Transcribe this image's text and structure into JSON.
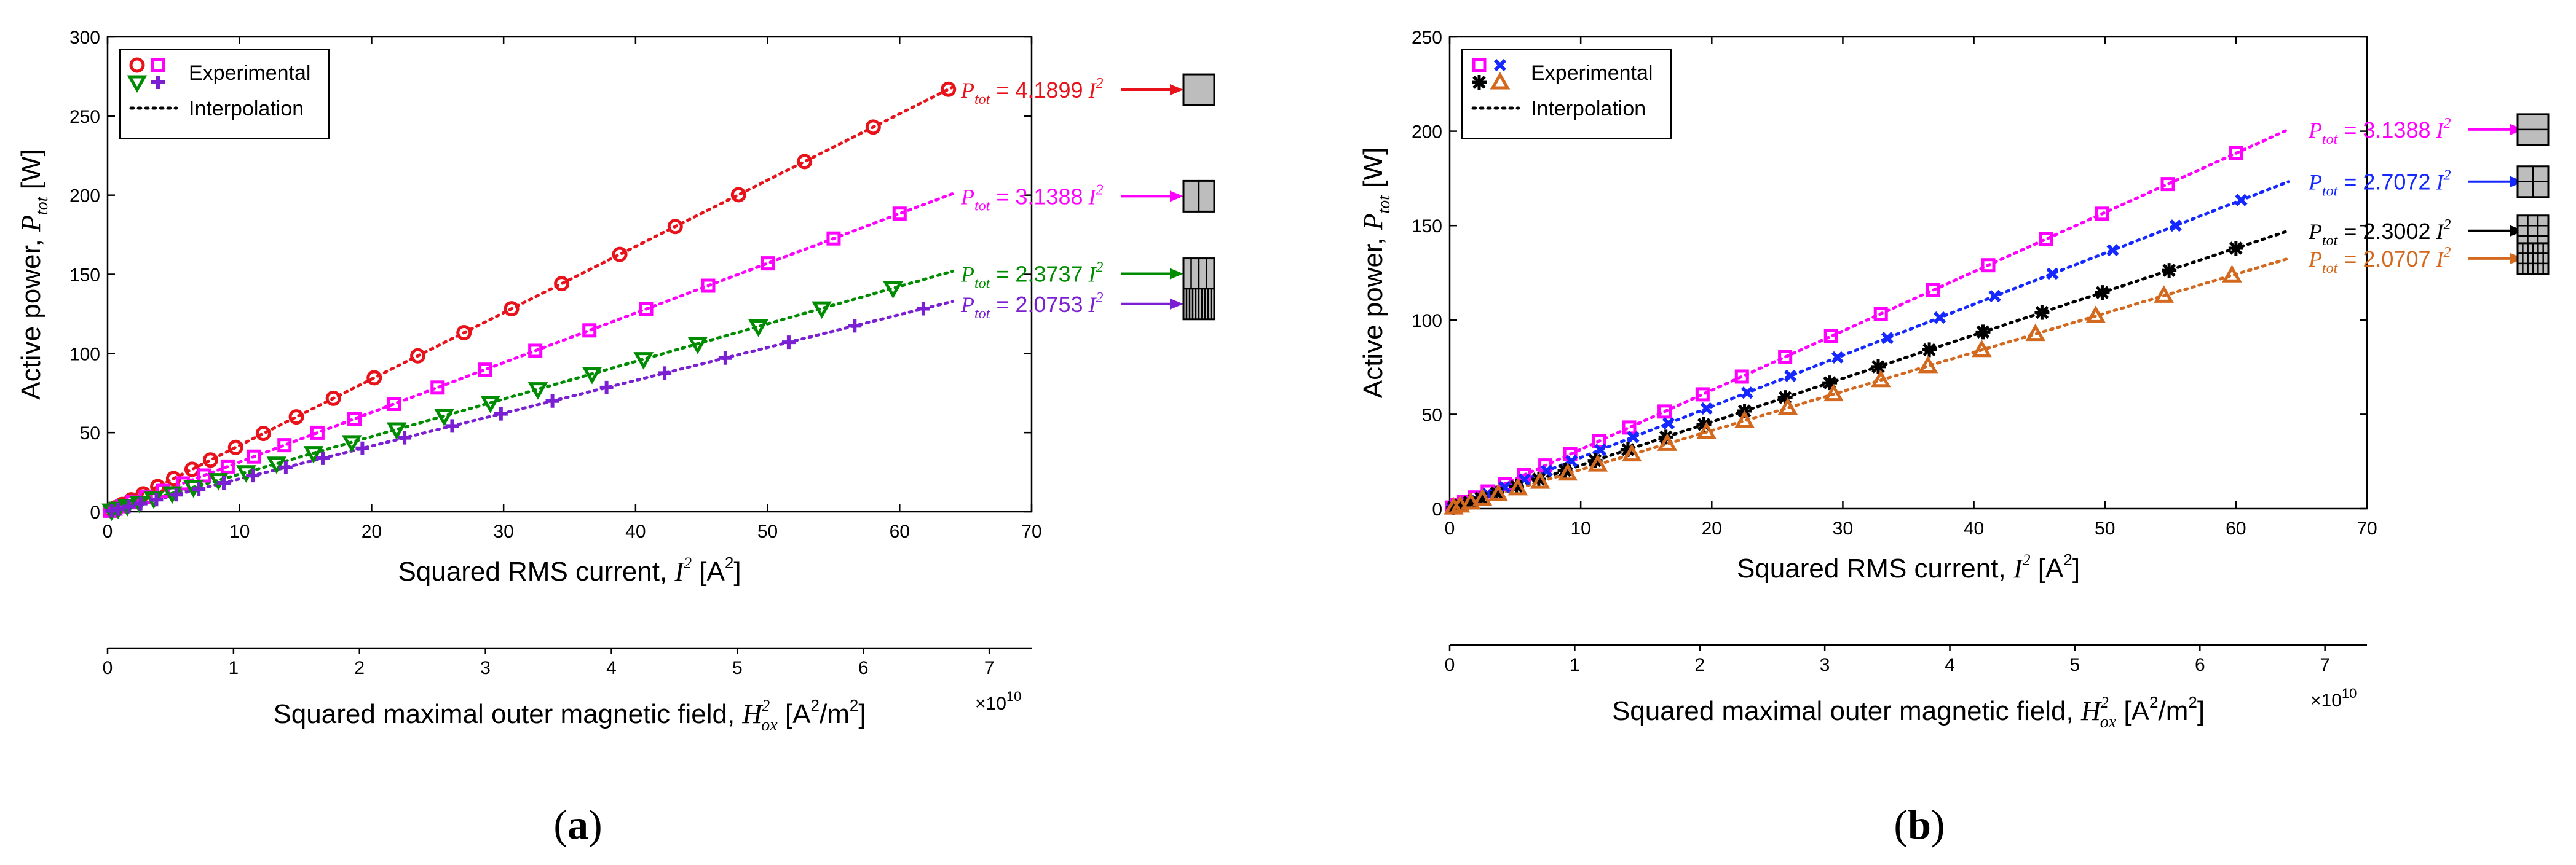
{
  "figure_labels": [
    {
      "open": "(",
      "letter": "a",
      "close": ")"
    },
    {
      "open": "(",
      "letter": "b",
      "close": ")"
    }
  ],
  "chart_data": [
    {
      "type": "scatter",
      "panel": "a",
      "ylabel_text": "Active power,",
      "ylabel_sym": "P",
      "ylabel_sub": "tot",
      "ylabel_unit": "[W]",
      "xlabel_text": "Squared RMS current,",
      "xlabel_sym": "I",
      "xlabel_unit": "[A",
      "xlabel_unit2": "]",
      "xlim": [
        0,
        70
      ],
      "ylim": [
        0,
        300
      ],
      "xticks": [
        0,
        10,
        20,
        30,
        40,
        50,
        60,
        70
      ],
      "yticks": [
        0,
        50,
        100,
        150,
        200,
        250,
        300
      ],
      "x2label_text": "Squared maximal outer magnetic field,",
      "x2label_sym": "H",
      "x2label_sub": "ox",
      "x2label_unit": "[A",
      "x2label_unit_mid": "/m",
      "x2label_unit_end": "]",
      "x2ticks": [
        0,
        1,
        2,
        3,
        4,
        5,
        6,
        7
      ],
      "x2_exponent_base": "×10",
      "x2_exponent": "10",
      "x2_per_x": 0.1048,
      "legend": {
        "experimental": "Experimental",
        "interpolation": "Interpolation"
      },
      "series": [
        {
          "name": "Ptot = 4.1899 I²",
          "slope": 4.1899,
          "coef_text": "4.1899",
          "color": "#e8121a",
          "marker": "circle",
          "x": [
            0.2,
            0.6,
            1.1,
            1.8,
            2.7,
            3.8,
            5.0,
            6.4,
            7.8,
            9.7,
            11.8,
            14.3,
            17.1,
            20.2,
            23.5,
            27.0,
            30.6,
            34.4,
            38.8,
            43.0,
            47.8,
            52.8,
            58.0,
            63.7
          ],
          "fit_end": 64,
          "icon": "solid"
        },
        {
          "name": "Ptot = 3.1388 I²",
          "slope": 3.1388,
          "coef_text": "3.1388",
          "color": "#ff00ff",
          "marker": "square",
          "x": [
            0.2,
            0.6,
            1.1,
            1.9,
            2.9,
            4.2,
            5.7,
            7.3,
            9.1,
            11.1,
            13.4,
            15.9,
            18.7,
            21.7,
            25.0,
            28.6,
            32.4,
            36.5,
            40.8,
            45.5,
            50.0,
            55.0,
            60.0
          ],
          "fit_end": 64,
          "icon": "half"
        },
        {
          "name": "Ptot = 2.3737 I²",
          "slope": 2.3737,
          "coef_text": "2.3737",
          "color": "#008c00",
          "marker": "triangle-down",
          "x": [
            0.3,
            0.8,
            1.5,
            2.4,
            3.5,
            4.9,
            6.5,
            8.4,
            10.5,
            12.8,
            15.6,
            18.5,
            21.9,
            25.5,
            29.0,
            32.6,
            36.7,
            40.6,
            44.7,
            49.3,
            54.1,
            59.5
          ],
          "fit_end": 64,
          "icon": "triple"
        },
        {
          "name": "Ptot = 2.0753 I²",
          "slope": 2.0753,
          "coef_text": "2.0753",
          "color": "#7a1fd1",
          "marker": "plus",
          "x": [
            0.3,
            0.8,
            1.6,
            2.5,
            3.7,
            5.2,
            6.9,
            8.8,
            11.0,
            13.5,
            16.3,
            19.3,
            22.5,
            26.1,
            29.8,
            33.7,
            37.8,
            42.2,
            46.8,
            51.6,
            56.6,
            61.8
          ],
          "fit_end": 64,
          "icon": "many"
        }
      ]
    },
    {
      "type": "scatter",
      "panel": "b",
      "ylabel_text": "Active power,",
      "ylabel_sym": "P",
      "ylabel_sub": "tot",
      "ylabel_unit": "[W]",
      "xlabel_text": "Squared RMS current,",
      "xlabel_sym": "I",
      "xlabel_unit": "[A",
      "xlabel_unit2": "]",
      "xlim": [
        0,
        70
      ],
      "ylim": [
        0,
        250
      ],
      "xticks": [
        0,
        10,
        20,
        30,
        40,
        50,
        60,
        70
      ],
      "yticks": [
        0,
        50,
        100,
        150,
        200,
        250
      ],
      "x2label_text": "Squared maximal outer magnetic field,",
      "x2label_sym": "H",
      "x2label_sub": "ox",
      "x2label_unit": "[A",
      "x2label_unit_mid": "/m",
      "x2label_unit_end": "]",
      "x2ticks": [
        0,
        1,
        2,
        3,
        4,
        5,
        6,
        7
      ],
      "x2_exponent_base": "×10",
      "x2_exponent": "10",
      "x2_per_x": 0.1048,
      "legend": {
        "experimental": "Experimental",
        "interpolation": "Interpolation"
      },
      "series": [
        {
          "name": "Ptot = 3.1388 I²",
          "slope": 3.1388,
          "coef_text": "3.1388",
          "color": "#ff00ff",
          "marker": "square",
          "x": [
            0.2,
            0.6,
            1.1,
            1.9,
            2.9,
            4.2,
            5.7,
            7.3,
            9.2,
            11.4,
            13.7,
            16.4,
            19.3,
            22.3,
            25.6,
            29.1,
            32.9,
            36.9,
            41.1,
            45.5,
            49.8,
            54.8,
            60.0
          ],
          "fit_end": 64,
          "icon": "hsplit"
        },
        {
          "name": "Ptot = 2.7072 I²",
          "slope": 2.7072,
          "coef_text": "2.7072",
          "color": "#1428ff",
          "marker": "x",
          "x": [
            0.2,
            0.6,
            1.1,
            1.9,
            2.9,
            4.2,
            5.7,
            7.4,
            9.3,
            11.5,
            14.0,
            16.7,
            19.6,
            22.7,
            26.0,
            29.6,
            33.4,
            37.4,
            41.6,
            46.0,
            50.6,
            55.4,
            60.4
          ],
          "fit_end": 64,
          "icon": "quad"
        },
        {
          "name": "Ptot = 2.3002 I²",
          "slope": 2.3002,
          "coef_text": "2.3002",
          "color": "#000000",
          "marker": "star",
          "x": [
            0.3,
            0.8,
            1.5,
            2.4,
            3.6,
            5.1,
            6.8,
            8.8,
            11.1,
            13.6,
            16.5,
            19.4,
            22.5,
            25.6,
            29.0,
            32.7,
            36.6,
            40.7,
            45.2,
            49.8,
            54.9,
            60.0
          ],
          "fit_end": 64,
          "icon": "grid"
        },
        {
          "name": "Ptot = 2.0707 I²",
          "slope": 2.0707,
          "coef_text": "2.0707",
          "color": "#d2691e",
          "marker": "triangle-up",
          "x": [
            0.3,
            0.8,
            1.6,
            2.5,
            3.7,
            5.2,
            6.9,
            9.0,
            11.3,
            13.9,
            16.6,
            19.6,
            22.5,
            25.8,
            29.3,
            32.9,
            36.5,
            40.6,
            44.7,
            49.3,
            54.5,
            59.7
          ],
          "fit_end": 64,
          "icon": "densegrid"
        }
      ]
    }
  ]
}
